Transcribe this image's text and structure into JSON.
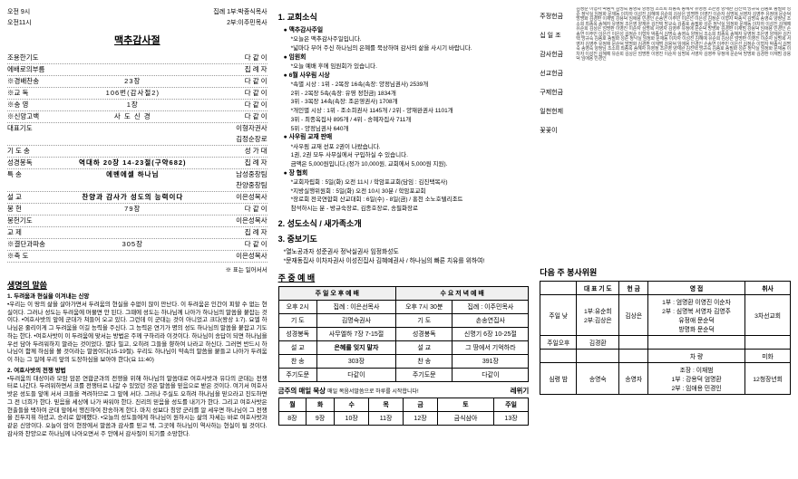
{
  "times": {
    "t1": "오전 9시",
    "t2": "오전11시",
    "label": "집례",
    "s1": "1부:박종식목사",
    "s2": "2부:이주민목사"
  },
  "mainTitle": "맥추감사절",
  "order": [
    {
      "l": "조용한기도",
      "m": "",
      "r": "다 같 이"
    },
    {
      "l": "에배로의부름",
      "m": "",
      "r": "집 례 자"
    },
    {
      "l": "※경배찬송",
      "m": "23장",
      "r": "다 같 이"
    },
    {
      "l": "※교 독",
      "m": "106번(감사절2)",
      "r": "다 같 이"
    },
    {
      "l": "※송 영",
      "m": "1장",
      "r": "다 같 이"
    },
    {
      "l": "※신앙고백",
      "m": "사 도 신 경",
      "r": "다 같 이"
    },
    {
      "l": "대표기도",
      "m": "",
      "r": "이형자권사\n김정순장로"
    },
    {
      "l": "기 도 송",
      "m": "",
      "r": "성 가 대"
    },
    {
      "l": "성경봉독",
      "m": "역대하 20장 14-23절(구약682)",
      "r": "집 례 자"
    },
    {
      "l": "특 송",
      "m": "에벤에셀 하나님",
      "r": "남성중창팀\n찬양중창팀"
    },
    {
      "l": "설 교",
      "m": "찬양과 감사가 성도의 능력이다",
      "r": "이은성목사"
    },
    {
      "l": "봉 헌",
      "m": "79장",
      "r": "다 같 이"
    },
    {
      "l": "봉헌기도",
      "m": "",
      "r": "이은성목사"
    },
    {
      "l": "교 제",
      "m": "",
      "r": "집 례 자"
    },
    {
      "l": "※결단과파송",
      "m": "305장",
      "r": "다 같 이"
    },
    {
      "l": "※축 도",
      "m": "",
      "r": "이은성목사"
    }
  ],
  "orderNote": "※ 표는 일어서서",
  "sermon": {
    "title": "생명의 말씀",
    "p1title": "1. 두려움과 현실을 이겨내는 신앙",
    "p1": "•우리는 이 땅의 삶을 살아가면서 두려움의 현실을 수없이 많이 만난다. 이 두려움은 인간이 피할 수 없는 현실이다. 그러나 성도는 두려움에 머물면 안 된다. 그때에 성도는 하나님께 나아가 하나님의 말씀을 붙잡는 것이다.\n•여호사밧의 앞에 군대가 쳐들어 오고 있다. 그런데 이 군대는 것이 아니었고 크다(왕상 1:7). 요엘 하나님은 줄리이게 그 두려움을 이길 능력을 주신다. 그 능력은 연기가 명의 성도 하나님의 말씀을 붙잡고 기도하는 한다.\n•여호사밧이 이 두려움에 맞서는 방법은 주께 구하리라 이것이다. 하나님이 송답이 되면 하나님을 우선 담아 두려워하지 말라는 것이었다. 멸다 밀고, 오히려 그들을 향하여 나라고 하신다. 그러면 반드시 하나님이 함께 하심을 볼 것이라는 말씀이다(15-19절). 우리도 하나님이 약속의 말씀을 붙들고 나아가 두려움이 하는 그 일에 우리 앞의 도장하심을 보아야 한다(요 11:40)",
    "p2title": "2. 여호사밧의 전쟁 방법",
    "p2": "•두려움의 대상이라 모암 암몬 연합군과의 전쟁을 위해 하나님의 말씀대로 여호사밧과 유다의 군대는 전쟁터로 나간다. 두려워하면서 크를 전쟁터로 나갈 수 있었던 것은 말씀을 믿음으로 받은 것이다. 여기서 여호사밧은 성도들 앞에 서서 크들을 격려하므로 그 앞에 서다. 그러나 주실도 오히려 하나님을 믿으라고 진도하면 그 전 너희가 한다. 믿음을 세상에 나가 싸워야 한다. 진리의 믿음을 성도를 내기가 한다.\n그리고 여호사밧은 현출들을 택하여 군대 앞에서 행진하여 찬송하게 한다. 마치 성보다 칭양 군리를 알 세우면 하나님이 그 전쟁을 진두지휘 하셨고, 승리로 합께했다.\n•오늘의 성도들에게 하나님이 원하시는 삶의 자세는 바로 여호사밧과 같은 신앙이다. 오늘이 암이 현장에서 말씀과 감사를 믿고 택, 그곳에 하나님이 역사하는 현실이 될 것이다. 감사와 찬양으로 하나님께 나아오면서 주 안에서 감사절이 되기를 소망한다."
  },
  "news": {
    "h1": "1. 교회소식",
    "items": [
      {
        "t": "● 맥추감사주일",
        "sub": [
          "*오늘은 맥추감사주일입니다.",
          "*넓마다 부어 주신 하나님의 은혜를 묵상하며 감사의 삶을 사시기 바랍니다."
        ]
      },
      {
        "t": "● 임원회",
        "sub": [
          "*오늘 예배 후에 임원회가 있습니다."
        ]
      },
      {
        "t": "● 6월 사우림 시상",
        "sub": [
          "*속별 시상 : 1위 - 2목장 16속(속장: 양정님권사) 2539개",
          "           2위 - 2목장 5속(속장: 유영 정헌금) 1834개",
          "           3위 - 3목장 14속(속장: 조은영권사) 1708개",
          "*개인별 시상 : 1위 - 조소희권사 1145개 / 2위 - 양재완권사 1101개",
          "           3위 - 최종옥집사 895개 / 4위 - 송혜자집사 711개",
          "           5위 - 양정님권사 640개"
        ]
      },
      {
        "t": "● 사우림 교재 판매",
        "sub": [
          "*사우림 교재 선포 2권이 나왔습니다.",
          "1권, 2권 모두 사무실에서 구입하실 수 있습니다.",
          "금액은 5,000원입니다.(정가 10,000원, 교회에서 5,000원 지원)."
        ]
      },
      {
        "t": "● 장 협회",
        "sub": [
          "*교회자립회 : 5일(화) 오전 11시 / 학암포교회(담임 : 김진택목사)",
          "*지방실행위원회 : 5일(화) 오전 10시 30분 / 학암포교회",
          "*장로회 전국연합회 산교대회 : 6일(수) - 8일(금) / 홍천 소노호텔리조트",
          "참석하시는 분 - 방규숙장로, 김종호장로, 송필화장로"
        ]
      }
    ],
    "h2": "2. 성도소식 / 새가족소개",
    "h3": "3. 중보기도",
    "prayer": [
      "*열노공과자 성준권사 정낙실권사 임정화성도",
      "*문재동집사 이차자권사 이성진집사 김혜예권사 / 하나님의 빠른 치유를 위하여!"
    ]
  },
  "weekWorship": {
    "title": "주 중 예 배",
    "headers": [
      "",
      "주 일 오 후 예 배",
      "수 요 저 녁 예 배"
    ],
    "timeRow": [
      "오후 2시",
      "집례 : 이은선목사",
      "오후 7시 30분",
      "집례 : 이주민목사"
    ],
    "rows": [
      [
        "기 도",
        "김명숙권사",
        "기 도",
        "손송연집사"
      ],
      [
        "성경봉독",
        "사무엘하 7장 7-15절",
        "성경봉독",
        "신명기 6장 10-25절"
      ],
      [
        "설 교",
        "은혜를 잊지 말자",
        "설 교",
        "그 땅에서 기억하라"
      ],
      [
        "찬 송",
        "303장",
        "찬 송",
        "391장"
      ],
      [
        "주기도문",
        "다같이",
        "주기도문",
        "다같이"
      ]
    ]
  },
  "dailyMeditation": {
    "title": "금주의 매일 묵상",
    "note": "매일 복음서말씀으로 하루를 시작합니다!",
    "book": "레위기",
    "days": [
      "월",
      "화",
      "수",
      "목",
      "금",
      "토",
      "주일"
    ],
    "chaps": [
      "8장",
      "9장",
      "10장",
      "11장",
      "12장",
      "금식삼아",
      "13장"
    ]
  },
  "offerings": {
    "cat1": "주정헌금",
    "cat2": "십 일 조",
    "cat3": "감사헌금",
    "cat4": "선교헌금",
    "cat5": "구제헌금",
    "cat6": "일천헌제",
    "cat7": "꽃꽃이"
  },
  "nextWeek": {
    "title": "다음 주 봉사위원",
    "headers": [
      "",
      "대 표 기 도",
      "헌 금",
      "영 접",
      "취사"
    ],
    "rows": [
      [
        "주일 낮",
        "1부:유순희\n2부:김상은",
        "김상은",
        "1부 : 엄명환 이영진 이순자\n2부 : 심명복 서영자 김영주\n       유정애 문순덕\n       방명화 문순덕",
        "3차선교회"
      ],
      [
        "주일오후",
        "김경환",
        "",
        "",
        ""
      ],
      [
        "",
        "",
        "",
        "차 량",
        "미화"
      ],
      [
        "심령 밤",
        "송영숙",
        "송영자",
        "조장 : 이재범\n1부 : 강용덕 엄명환\n2부 : 임애용 민경인",
        "12청장년회"
      ]
    ]
  }
}
